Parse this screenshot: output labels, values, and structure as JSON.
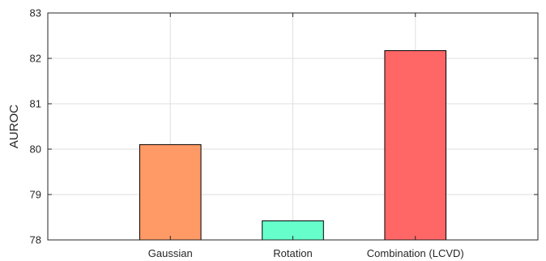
{
  "chart_data": {
    "type": "bar",
    "categories": [
      "Gaussian",
      "Rotation",
      "Combination (LCVD)"
    ],
    "values": [
      80.1,
      78.42,
      82.17
    ],
    "colors": [
      "#ff9966",
      "#66ffcc",
      "#ff6666"
    ],
    "xlabel": "",
    "ylabel": "AUROC",
    "ylim": [
      78,
      83
    ],
    "yticks": [
      78,
      79,
      80,
      81,
      82,
      83
    ],
    "grid": true,
    "legend": "none"
  }
}
